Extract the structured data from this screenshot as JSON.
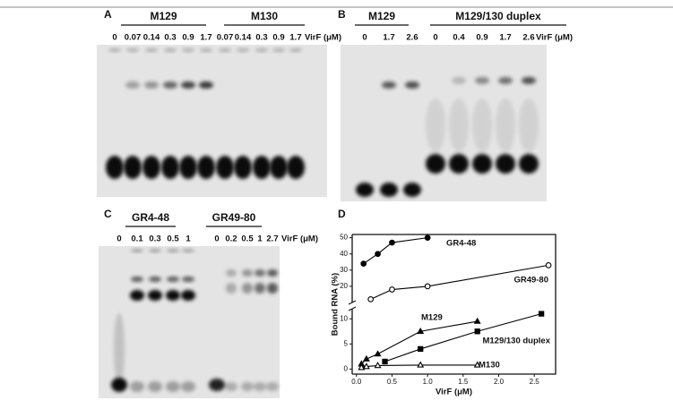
{
  "figure": {
    "panels": [
      {
        "label": "A",
        "groups": [
          "M129",
          "M130"
        ],
        "lanes": [
          "0",
          "0.07",
          "0.14",
          "0.3",
          "0.9",
          "1.7",
          "0.07",
          "0.14",
          "0.3",
          "0.9",
          "1.7"
        ],
        "unit": "VirF (μM)"
      },
      {
        "label": "B",
        "groups": [
          "M129",
          "M129/130 duplex"
        ],
        "lanes": [
          "0",
          "1.7",
          "2.6",
          "0",
          "0.4",
          "0.9",
          "1.7",
          "2.6"
        ],
        "unit": "VirF (μM)"
      },
      {
        "label": "C",
        "groups": [
          "GR4-48",
          "GR49-80"
        ],
        "lanes": [
          "0",
          "0.1",
          "0.3",
          "0.5",
          "1",
          "0",
          "0.2",
          "0.5",
          "1",
          "2.7"
        ],
        "unit": "VirF (μM)"
      },
      {
        "label": "D"
      }
    ]
  },
  "chart_data": {
    "type": "scatter",
    "xlabel": "VirF (μM)",
    "ylabel": "Bound RNA (%)",
    "xlim": [
      -0.06,
      2.8
    ],
    "xticks": [
      {
        "value": 0,
        "label": "0.0"
      },
      0.5,
      {
        "value": 1,
        "label": "1.0"
      },
      1.5,
      {
        "value": 2,
        "label": "2.0"
      },
      2.5
    ],
    "ylim": [
      -1,
      12
    ],
    "yticks": [
      0,
      5,
      10
    ],
    "y2lim": [
      10,
      52
    ],
    "y2ticks": [
      20,
      30,
      40,
      50
    ],
    "series": [
      {
        "name": "GR4-48",
        "color": "#000000",
        "marker": "filled-circle",
        "axis": "y2",
        "x": [
          0.1,
          0.3,
          0.5,
          1.0
        ],
        "values": [
          34,
          40,
          47,
          50
        ]
      },
      {
        "name": "GR49-80",
        "color": "#000000",
        "marker": "open-circle",
        "axis": "y2",
        "x": [
          0.2,
          0.5,
          1.0,
          2.7
        ],
        "values": [
          12,
          18,
          20,
          33
        ]
      },
      {
        "name": "M129",
        "color": "#000000",
        "marker": "filled-triangle",
        "x": [
          0.07,
          0.14,
          0.3,
          0.9,
          1.7
        ],
        "values": [
          1,
          2,
          3,
          7.5,
          9.5
        ]
      },
      {
        "name": "M129/130 duplex",
        "color": "#000000",
        "marker": "filled-square",
        "x": [
          0.4,
          0.9,
          1.7,
          2.6
        ],
        "values": [
          1.5,
          4,
          7.5,
          11
        ]
      },
      {
        "name": "M130",
        "color": "#000000",
        "marker": "open-triangle",
        "x": [
          0.07,
          0.14,
          0.3,
          0.9,
          1.7
        ],
        "values": [
          0.3,
          0.5,
          0.7,
          0.8,
          0.8
        ]
      }
    ]
  }
}
